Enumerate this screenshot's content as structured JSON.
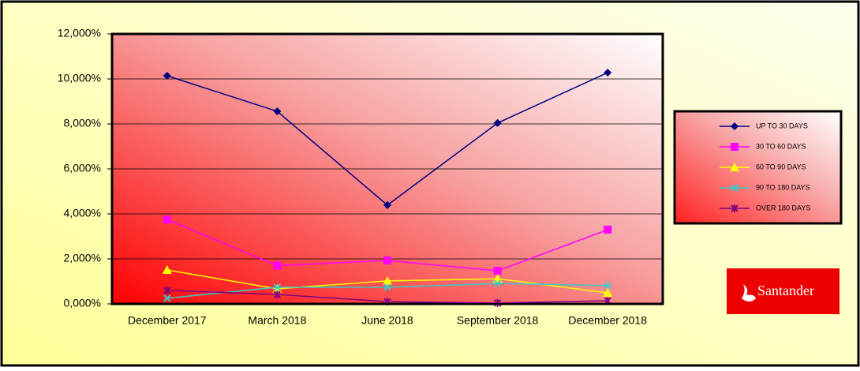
{
  "chart_data": {
    "type": "line",
    "categories": [
      "December 2017",
      "March 2018",
      "June 2018",
      "September 2018",
      "December 2018"
    ],
    "series": [
      {
        "name": "UP TO 30 DAYS",
        "color": "#000080",
        "values": [
          10.14,
          8.56,
          4.39,
          8.04,
          10.28
        ]
      },
      {
        "name": "30 TO 60 DAYS",
        "color": "#ff00ff",
        "values": [
          3.75,
          1.7,
          1.93,
          1.47,
          3.3
        ]
      },
      {
        "name": "60 TO 90 DAYS",
        "color": "#ffff00",
        "values": [
          1.51,
          0.67,
          1.02,
          1.12,
          0.49
        ]
      },
      {
        "name": "90 TO 180 DAYS",
        "color": "#33cccc",
        "values": [
          0.25,
          0.74,
          0.74,
          0.91,
          0.81
        ]
      },
      {
        "name": "OVER 180 DAYS",
        "color": "#800080",
        "values": [
          0.6,
          0.42,
          0.1,
          0.04,
          0.14
        ]
      }
    ],
    "ylim": [
      0,
      12
    ],
    "yticks": [
      {
        "value": 0,
        "label": "0,000%"
      },
      {
        "value": 2,
        "label": "2,000%"
      },
      {
        "value": 4,
        "label": "4,000%"
      },
      {
        "value": 6,
        "label": "6,000%"
      },
      {
        "value": 8,
        "label": "8,000%"
      },
      {
        "value": 10,
        "label": "10,000%"
      },
      {
        "value": 12,
        "label": "12,000%"
      }
    ],
    "grid": true,
    "legend": "right",
    "logo": "Santander"
  }
}
